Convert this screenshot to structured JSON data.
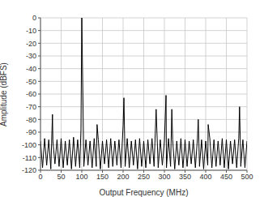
{
  "chart_data": {
    "type": "line",
    "x_label": "Output Frequency (MHz)",
    "y_label": "Amplitude (dBFS)",
    "x": [
      0,
      5,
      10,
      15,
      20,
      25,
      29,
      30,
      35,
      40,
      45,
      50,
      55,
      60,
      65,
      70,
      75,
      80,
      85,
      90,
      95,
      98,
      100,
      105,
      110,
      115,
      120,
      125,
      130,
      135,
      137,
      140,
      145,
      150,
      155,
      160,
      165,
      170,
      175,
      180,
      185,
      190,
      195,
      200,
      202,
      205,
      210,
      215,
      220,
      225,
      230,
      235,
      240,
      245,
      250,
      255,
      260,
      265,
      270,
      275,
      280,
      285,
      290,
      295,
      300,
      304,
      305,
      310,
      315,
      318,
      320,
      325,
      330,
      335,
      340,
      345,
      350,
      355,
      360,
      365,
      370,
      375,
      380,
      382,
      385,
      390,
      395,
      400,
      405,
      406,
      410,
      415,
      420,
      425,
      430,
      435,
      440,
      445,
      450,
      455,
      460,
      465,
      470,
      475,
      480,
      482,
      485,
      490,
      495,
      500
    ],
    "values": [
      -97,
      -118,
      -95,
      -116,
      -96,
      -119,
      -76,
      -97,
      -115,
      -96,
      -117,
      -95,
      -118,
      -97,
      -116,
      -96,
      -119,
      -94,
      -117,
      -96,
      -118,
      -88,
      0,
      -117,
      -96,
      -116,
      -97,
      -118,
      -95,
      -117,
      -84,
      -96,
      -119,
      -97,
      -115,
      -96,
      -118,
      -95,
      -117,
      -97,
      -116,
      -96,
      -118,
      -85,
      -63,
      -117,
      -95,
      -118,
      -97,
      -116,
      -96,
      -119,
      -95,
      -117,
      -97,
      -118,
      -96,
      -115,
      -95,
      -117,
      -72,
      -118,
      -96,
      -116,
      -97,
      -61,
      -118,
      -95,
      -117,
      -72,
      -96,
      -119,
      -97,
      -116,
      -95,
      -118,
      -96,
      -117,
      -97,
      -115,
      -96,
      -118,
      -95,
      -80,
      -117,
      -96,
      -119,
      -97,
      -116,
      -84,
      -95,
      -118,
      -96,
      -117,
      -97,
      -116,
      -95,
      -118,
      -96,
      -119,
      -97,
      -115,
      -96,
      -118,
      -95,
      -70,
      -117,
      -96,
      -118,
      -97
    ],
    "color": "#000000",
    "xlim": [
      0,
      500
    ],
    "xticks": [
      0,
      50,
      100,
      150,
      200,
      250,
      300,
      350,
      400,
      450,
      500
    ],
    "ylim": [
      -120,
      0
    ],
    "yticks": [
      -120,
      -110,
      -100,
      -90,
      -80,
      -70,
      -60,
      -50,
      -40,
      -30,
      -20,
      -10,
      0
    ],
    "grid": true
  }
}
